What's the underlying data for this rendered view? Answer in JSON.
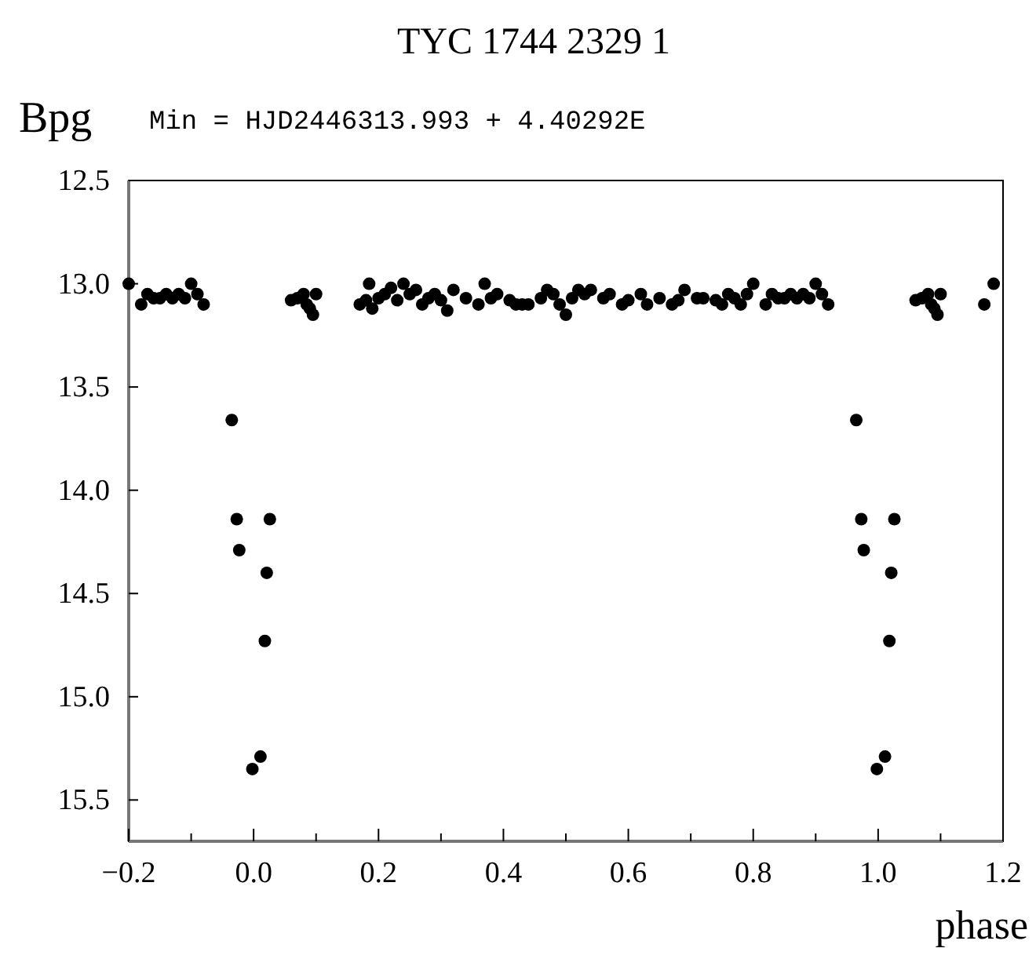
{
  "chart_data": {
    "type": "scatter",
    "title": "TYC 1744 2329 1",
    "subtitle": "Min = HJD2446313.993 + 4.40292E",
    "xlabel": "phase",
    "ylabel": "Bpg",
    "xlim": [
      -0.2,
      1.2
    ],
    "ylim": [
      15.7,
      12.5
    ],
    "xticks": [
      {
        "value": -0.2,
        "label": "−0.2"
      },
      {
        "value": -0.1,
        "label": null
      },
      {
        "value": 0,
        "label": "0.0"
      },
      {
        "value": 0.1,
        "label": null
      },
      {
        "value": 0.2,
        "label": "0.2"
      },
      {
        "value": 0.3,
        "label": null
      },
      {
        "value": 0.4,
        "label": "0.4"
      },
      {
        "value": 0.5,
        "label": null
      },
      {
        "value": 0.6,
        "label": "0.6"
      },
      {
        "value": 0.7,
        "label": null
      },
      {
        "value": 0.8,
        "label": "0.8"
      },
      {
        "value": 0.9,
        "label": null
      },
      {
        "value": 1,
        "label": "1.0"
      },
      {
        "value": 1.1,
        "label": null
      },
      {
        "value": 1.2,
        "label": "1.2"
      }
    ],
    "yticks": [
      12.5,
      {
        "value": 13,
        "label": "13.0"
      },
      13.5,
      {
        "value": 14,
        "label": "14.0"
      },
      14.5,
      {
        "value": 15,
        "label": "15.0"
      },
      15.5
    ],
    "grid": false,
    "marker": "circle",
    "series": [
      {
        "color": "#000000",
        "x": [
          -0.2,
          -0.18,
          -0.17,
          -0.16,
          -0.15,
          -0.14,
          -0.13,
          -0.12,
          -0.11,
          -0.1,
          -0.09,
          -0.08,
          -0.035,
          -0.027,
          -0.023,
          -0.002,
          0.011,
          0.018,
          0.021,
          0.026,
          0.06,
          0.07,
          0.08,
          0.085,
          0.09,
          0.095,
          0.1,
          0.17,
          0.18,
          0.185,
          0.19,
          0.2,
          0.21,
          0.22,
          0.23,
          0.24,
          0.25,
          0.26,
          0.27,
          0.28,
          0.29,
          0.3,
          0.31,
          0.32,
          0.34,
          0.36,
          0.37,
          0.38,
          0.39,
          0.41,
          0.42,
          0.43,
          0.44,
          0.46,
          0.47,
          0.48,
          0.49,
          0.5,
          0.51,
          0.52,
          0.53,
          0.54,
          0.56,
          0.57,
          0.59,
          0.6,
          0.62,
          0.63,
          0.65,
          0.67,
          0.68,
          0.69,
          0.71,
          0.72,
          0.74,
          0.75,
          0.76,
          0.77,
          0.78,
          0.79,
          0.8,
          0.82,
          0.83,
          0.84,
          0.85,
          0.86,
          0.87,
          0.88,
          0.89,
          0.9,
          0.91,
          0.92,
          0.965,
          0.973,
          0.977,
          0.998,
          1.011,
          1.018,
          1.021,
          1.026,
          1.06,
          1.07,
          1.08,
          1.085,
          1.09,
          1.095,
          1.1,
          1.17,
          1.185
        ],
        "values": [
          13.0,
          13.1,
          13.05,
          13.07,
          13.07,
          13.05,
          13.07,
          13.05,
          13.07,
          13.0,
          13.05,
          13.1,
          13.66,
          14.14,
          14.29,
          15.35,
          15.29,
          14.73,
          14.4,
          14.14,
          13.08,
          13.07,
          13.05,
          13.1,
          13.12,
          13.15,
          13.05,
          13.1,
          13.08,
          13.0,
          13.12,
          13.07,
          13.05,
          13.02,
          13.08,
          13.0,
          13.05,
          13.03,
          13.1,
          13.07,
          13.05,
          13.08,
          13.13,
          13.03,
          13.07,
          13.1,
          13.0,
          13.07,
          13.05,
          13.08,
          13.1,
          13.1,
          13.1,
          13.07,
          13.03,
          13.05,
          13.1,
          13.15,
          13.07,
          13.03,
          13.05,
          13.03,
          13.07,
          13.05,
          13.1,
          13.08,
          13.05,
          13.1,
          13.07,
          13.1,
          13.08,
          13.03,
          13.07,
          13.07,
          13.08,
          13.1,
          13.05,
          13.07,
          13.1,
          13.05,
          13.0,
          13.1,
          13.05,
          13.07,
          13.07,
          13.05,
          13.07,
          13.05,
          13.07,
          13.0,
          13.05,
          13.1,
          13.66,
          14.14,
          14.29,
          15.35,
          15.29,
          14.73,
          14.4,
          14.14,
          13.08,
          13.07,
          13.05,
          13.1,
          13.12,
          13.15,
          13.05,
          13.1,
          13.0
        ]
      }
    ]
  }
}
